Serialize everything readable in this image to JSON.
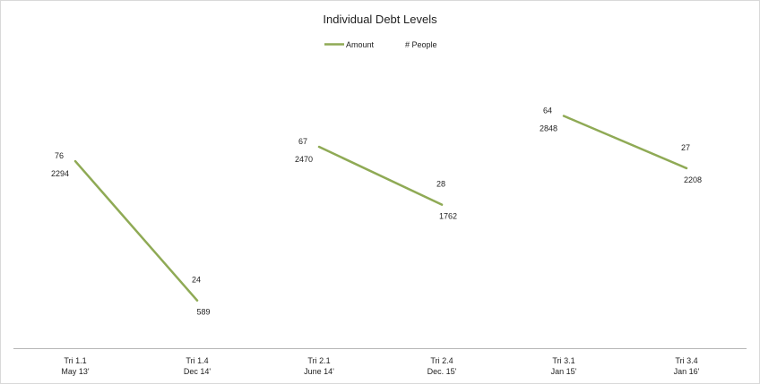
{
  "chart_data": {
    "type": "line",
    "title": "Individual Debt Levels",
    "legend": {
      "placement": "top-center",
      "entries": [
        "Amount",
        "# People"
      ]
    },
    "colors": {
      "amount": "#8faa55",
      "people": "#ffffff",
      "axis": "#b7b7b7",
      "frame": "#d9d9d9"
    },
    "categories": [
      {
        "line1": "Tri 1.1",
        "line2": "May 13'"
      },
      {
        "line1": "Tri 1.4",
        "line2": "Dec 14'"
      },
      {
        "line1": "Tri 2.1",
        "line2": "June 14'"
      },
      {
        "line1": "Tri 2.4",
        "line2": "Dec. 15'"
      },
      {
        "line1": "Tri 3.1",
        "line2": "Jan 15'"
      },
      {
        "line1": "Tri 3.4",
        "line2": "Jan 16'"
      }
    ],
    "series": [
      {
        "name": "Amount",
        "segments": [
          [
            0,
            1
          ],
          [
            2,
            3
          ],
          [
            4,
            5
          ]
        ],
        "values": [
          2294,
          589,
          2470,
          1762,
          2848,
          2208
        ],
        "data_labels": [
          "2294",
          "589",
          "2470",
          "1762",
          "2848",
          "2208"
        ]
      },
      {
        "name": "# People",
        "segments": [
          [
            0,
            1
          ],
          [
            2,
            3
          ],
          [
            4,
            5
          ]
        ],
        "values": [
          76,
          24,
          67,
          28,
          64,
          27
        ],
        "data_labels": [
          "76",
          "24",
          "67",
          "28",
          "64",
          "27"
        ]
      }
    ],
    "ylim": [
      0,
      3500
    ],
    "grid": false
  }
}
